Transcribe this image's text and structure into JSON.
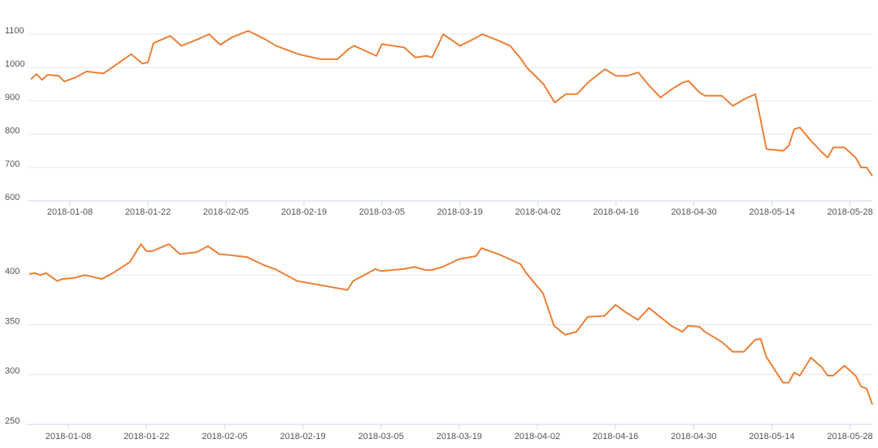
{
  "chart_data": [
    {
      "type": "line",
      "color": "#ec8037",
      "x": [
        "2018-01-01",
        "2018-01-02",
        "2018-01-03",
        "2018-01-04",
        "2018-01-06",
        "2018-01-07",
        "2018-01-09",
        "2018-01-11",
        "2018-01-14",
        "2018-01-16",
        "2018-01-19",
        "2018-01-21",
        "2018-01-22",
        "2018-01-23",
        "2018-01-26",
        "2018-01-28",
        "2018-01-31",
        "2018-02-02",
        "2018-02-04",
        "2018-02-06",
        "2018-02-09",
        "2018-02-12",
        "2018-02-14",
        "2018-02-18",
        "2018-02-22",
        "2018-02-25",
        "2018-02-27",
        "2018-02-28",
        "2018-03-04",
        "2018-03-05",
        "2018-03-09",
        "2018-03-11",
        "2018-03-13",
        "2018-03-14",
        "2018-03-16",
        "2018-03-19",
        "2018-03-22",
        "2018-03-23",
        "2018-03-26",
        "2018-03-28",
        "2018-03-30",
        "2018-03-31",
        "2018-04-03",
        "2018-04-05",
        "2018-04-07",
        "2018-04-09",
        "2018-04-11",
        "2018-04-14",
        "2018-04-16",
        "2018-04-18",
        "2018-04-20",
        "2018-04-22",
        "2018-04-24",
        "2018-04-26",
        "2018-04-28",
        "2018-04-29",
        "2018-05-01",
        "2018-05-02",
        "2018-05-05",
        "2018-05-07",
        "2018-05-09",
        "2018-05-11",
        "2018-05-12",
        "2018-05-13",
        "2018-05-16",
        "2018-05-17",
        "2018-05-18",
        "2018-05-19",
        "2018-05-21",
        "2018-05-23",
        "2018-05-24",
        "2018-05-25",
        "2018-05-27",
        "2018-05-29",
        "2018-05-30",
        "2018-05-31",
        "2018-06-01"
      ],
      "values": [
        965,
        980,
        963,
        978,
        975,
        958,
        970,
        988,
        982,
        1005,
        1040,
        1012,
        1015,
        1073,
        1095,
        1065,
        1085,
        1100,
        1068,
        1090,
        1110,
        1085,
        1065,
        1040,
        1025,
        1025,
        1055,
        1065,
        1035,
        1070,
        1060,
        1030,
        1035,
        1030,
        1100,
        1065,
        1090,
        1100,
        1080,
        1065,
        1025,
        1000,
        950,
        895,
        920,
        920,
        955,
        995,
        975,
        975,
        985,
        945,
        910,
        935,
        955,
        960,
        925,
        915,
        915,
        885,
        905,
        920,
        840,
        755,
        750,
        765,
        815,
        820,
        780,
        745,
        730,
        760,
        760,
        730,
        700,
        700,
        675
      ],
      "xlim": [
        "2018-01-01",
        "2018-06-01"
      ],
      "xticks": [
        "2018-01-08",
        "2018-01-22",
        "2018-02-05",
        "2018-02-19",
        "2018-03-05",
        "2018-03-19",
        "2018-04-02",
        "2018-04-16",
        "2018-04-30",
        "2018-05-14",
        "2018-05-28"
      ],
      "ylim": [
        600,
        1200
      ],
      "yticks": [
        600,
        700,
        800,
        900,
        1000,
        1100
      ],
      "grid": true
    },
    {
      "type": "line",
      "color": "#ec8037",
      "x": [
        "2018-01-01",
        "2018-01-02",
        "2018-01-03",
        "2018-01-04",
        "2018-01-06",
        "2018-01-07",
        "2018-01-09",
        "2018-01-11",
        "2018-01-14",
        "2018-01-16",
        "2018-01-19",
        "2018-01-21",
        "2018-01-22",
        "2018-01-23",
        "2018-01-26",
        "2018-01-28",
        "2018-01-31",
        "2018-02-02",
        "2018-02-04",
        "2018-02-06",
        "2018-02-09",
        "2018-02-12",
        "2018-02-14",
        "2018-02-18",
        "2018-02-22",
        "2018-02-25",
        "2018-02-27",
        "2018-02-28",
        "2018-03-04",
        "2018-03-05",
        "2018-03-09",
        "2018-03-11",
        "2018-03-13",
        "2018-03-14",
        "2018-03-16",
        "2018-03-19",
        "2018-03-22",
        "2018-03-23",
        "2018-03-26",
        "2018-03-28",
        "2018-03-30",
        "2018-03-31",
        "2018-04-03",
        "2018-04-05",
        "2018-04-07",
        "2018-04-09",
        "2018-04-11",
        "2018-04-14",
        "2018-04-16",
        "2018-04-18",
        "2018-04-20",
        "2018-04-22",
        "2018-04-24",
        "2018-04-26",
        "2018-04-28",
        "2018-04-29",
        "2018-05-01",
        "2018-05-02",
        "2018-05-05",
        "2018-05-07",
        "2018-05-09",
        "2018-05-11",
        "2018-05-12",
        "2018-05-13",
        "2018-05-16",
        "2018-05-17",
        "2018-05-18",
        "2018-05-19",
        "2018-05-21",
        "2018-05-23",
        "2018-05-24",
        "2018-05-25",
        "2018-05-27",
        "2018-05-29",
        "2018-05-30",
        "2018-05-31",
        "2018-06-01"
      ],
      "values": [
        401,
        402,
        400,
        402,
        394,
        396,
        397,
        400,
        396,
        402,
        413,
        431,
        424,
        424,
        431,
        421,
        423,
        429,
        421,
        420,
        418,
        410,
        406,
        394,
        390,
        387,
        385,
        394,
        406,
        404,
        406,
        408,
        405,
        405,
        408,
        416,
        419,
        427,
        421,
        416,
        411,
        402,
        382,
        349,
        340,
        343,
        358,
        359,
        370,
        362,
        355,
        367,
        358,
        349,
        343,
        349,
        348,
        343,
        333,
        323,
        323,
        335,
        336,
        318,
        292,
        292,
        302,
        299,
        317,
        307,
        299,
        299,
        309,
        299,
        288,
        286,
        270
      ],
      "xlim": [
        "2018-01-01",
        "2018-06-01"
      ],
      "xticks": [
        "2018-01-08",
        "2018-01-22",
        "2018-02-05",
        "2018-02-19",
        "2018-03-05",
        "2018-03-19",
        "2018-04-02",
        "2018-04-16",
        "2018-04-30",
        "2018-05-14",
        "2018-05-28"
      ],
      "ylim": [
        250,
        450
      ],
      "yticks": [
        250,
        300,
        350,
        400
      ],
      "grid": true
    }
  ]
}
